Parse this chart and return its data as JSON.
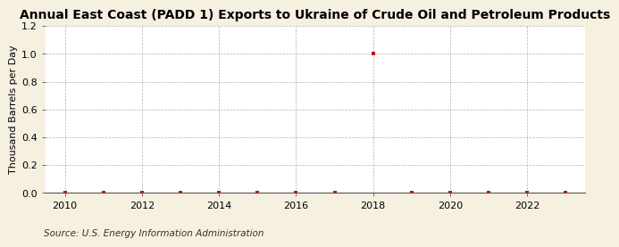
{
  "title": "Annual East Coast (PADD 1) Exports to Ukraine of Crude Oil and Petroleum Products",
  "ylabel": "Thousand Barrels per Day",
  "source": "Source: U.S. Energy Information Administration",
  "years": [
    2010,
    2011,
    2012,
    2013,
    2014,
    2015,
    2016,
    2017,
    2018,
    2019,
    2020,
    2021,
    2022,
    2023
  ],
  "values": [
    0.0,
    0.0,
    0.0,
    0.0,
    0.0,
    0.0,
    0.0,
    0.0,
    1.0,
    0.0,
    0.0,
    0.0,
    0.0,
    0.0
  ],
  "xlim": [
    2009.5,
    2023.5
  ],
  "ylim": [
    0.0,
    1.2
  ],
  "yticks": [
    0.0,
    0.2,
    0.4,
    0.6,
    0.8,
    1.0,
    1.2
  ],
  "xticks": [
    2010,
    2012,
    2014,
    2016,
    2018,
    2020,
    2022
  ],
  "marker_color": "#cc0000",
  "grid_color": "#aaaaaa",
  "plot_bg_color": "#ffffff",
  "fig_bg_color": "#f5f0e0",
  "title_fontsize": 10,
  "ylabel_fontsize": 8,
  "tick_fontsize": 8,
  "source_fontsize": 7.5
}
